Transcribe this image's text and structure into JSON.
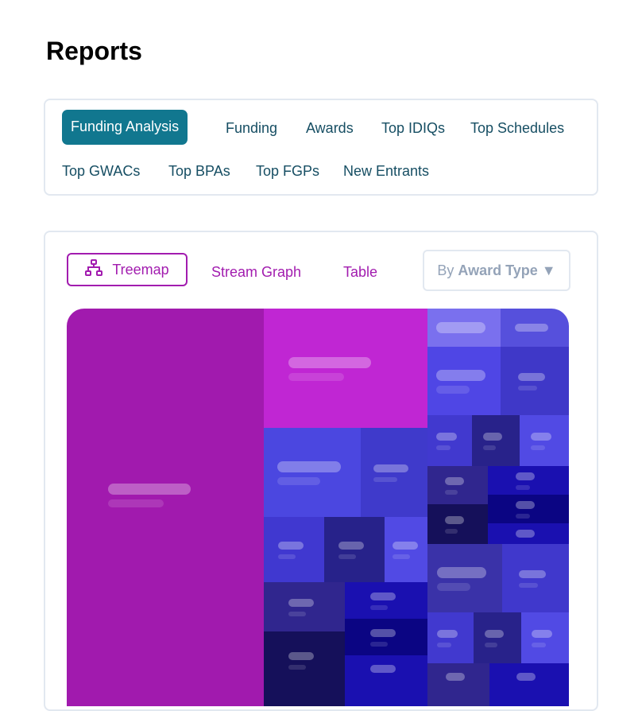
{
  "page": {
    "title": "Reports"
  },
  "report_tabs": [
    {
      "label": "Funding Analysis",
      "active": true
    },
    {
      "label": "Funding"
    },
    {
      "label": "Awards"
    },
    {
      "label": "Top IDIQs"
    },
    {
      "label": "Top Schedules"
    },
    {
      "label": "Top GWACs"
    },
    {
      "label": "Top BPAs"
    },
    {
      "label": "Top FGPs"
    },
    {
      "label": "New Entrants"
    }
  ],
  "view_tabs": [
    {
      "label": "Treemap",
      "active": true,
      "icon": "hierarchy-icon"
    },
    {
      "label": "Stream Graph"
    },
    {
      "label": "Table"
    }
  ],
  "group_by": {
    "prefix": "By",
    "value": "Award Type",
    "icon": "caret-down-icon"
  },
  "colors": {
    "accent": "#11778f",
    "view_accent": "#a21caf"
  }
}
